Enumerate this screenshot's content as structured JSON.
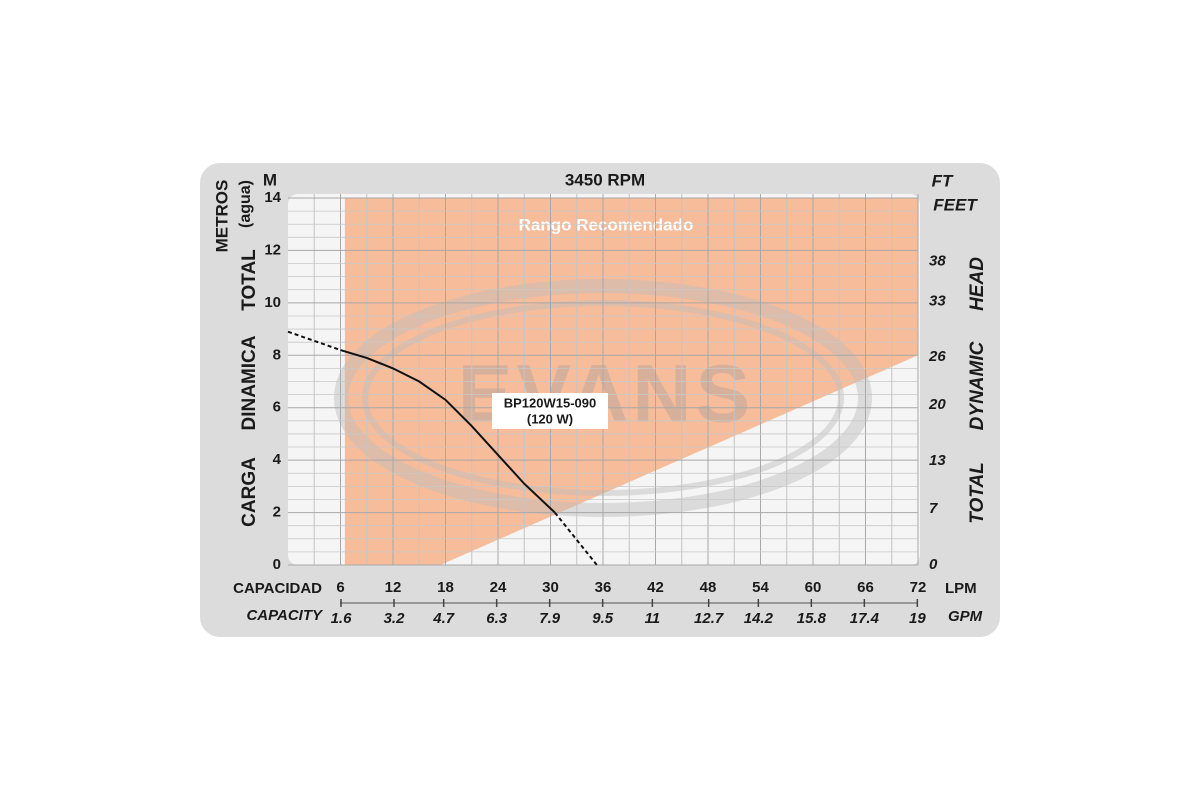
{
  "chart_data": {
    "type": "line",
    "title": "3450 RPM",
    "y_unit": "M",
    "y_unit_title": [
      "METROS",
      "(agua)"
    ],
    "y_title": [
      "CARGA",
      "DINAMICA",
      "TOTAL"
    ],
    "y2_unit": [
      "FT",
      "FEET"
    ],
    "y2_title": [
      "TOTAL",
      "DYNAMIC",
      "HEAD"
    ],
    "xlabel": "CAPACIDAD",
    "x_unit": "LPM",
    "x2label": "CAPACITY",
    "x2_unit": "GPM",
    "xlim": [
      0,
      72
    ],
    "xticks": [
      6,
      12,
      18,
      24,
      30,
      36,
      42,
      48,
      54,
      60,
      66,
      72
    ],
    "x2lim": [
      0,
      19.02
    ],
    "x2ticks": [
      1.6,
      3.2,
      4.7,
      6.3,
      7.9,
      9.5,
      11,
      12.7,
      14.2,
      15.8,
      17.4,
      19
    ],
    "ylim": [
      0,
      14
    ],
    "yticks": [
      0,
      2,
      4,
      6,
      8,
      10,
      12,
      14
    ],
    "y2lim": [
      0,
      45.93
    ],
    "y2ticks": [
      0,
      7,
      13,
      20,
      26,
      33,
      38
    ],
    "grid": true,
    "recommended_range": {
      "label": "Rango Recomendado",
      "color": "#f7b690",
      "x": [
        6.5,
        6.5,
        72,
        72,
        17.4
      ],
      "y": [
        0,
        14,
        14,
        8,
        0
      ]
    },
    "curve": {
      "label": "BP120W15-090",
      "sublabel": "(120 W)",
      "color": "#111111",
      "segments": [
        {
          "dashed": true,
          "x": [
            0,
            6
          ],
          "y": [
            8.9,
            8.2
          ]
        },
        {
          "dashed": false,
          "x": [
            6,
            9,
            12,
            15,
            18,
            21,
            24,
            27,
            30.5
          ],
          "y": [
            8.2,
            7.9,
            7.5,
            7.0,
            6.3,
            5.3,
            4.2,
            3.1,
            2.0
          ]
        },
        {
          "dashed": true,
          "x": [
            30.5,
            35.3
          ],
          "y": [
            2.0,
            0
          ]
        }
      ]
    },
    "watermark": "EVANS"
  }
}
